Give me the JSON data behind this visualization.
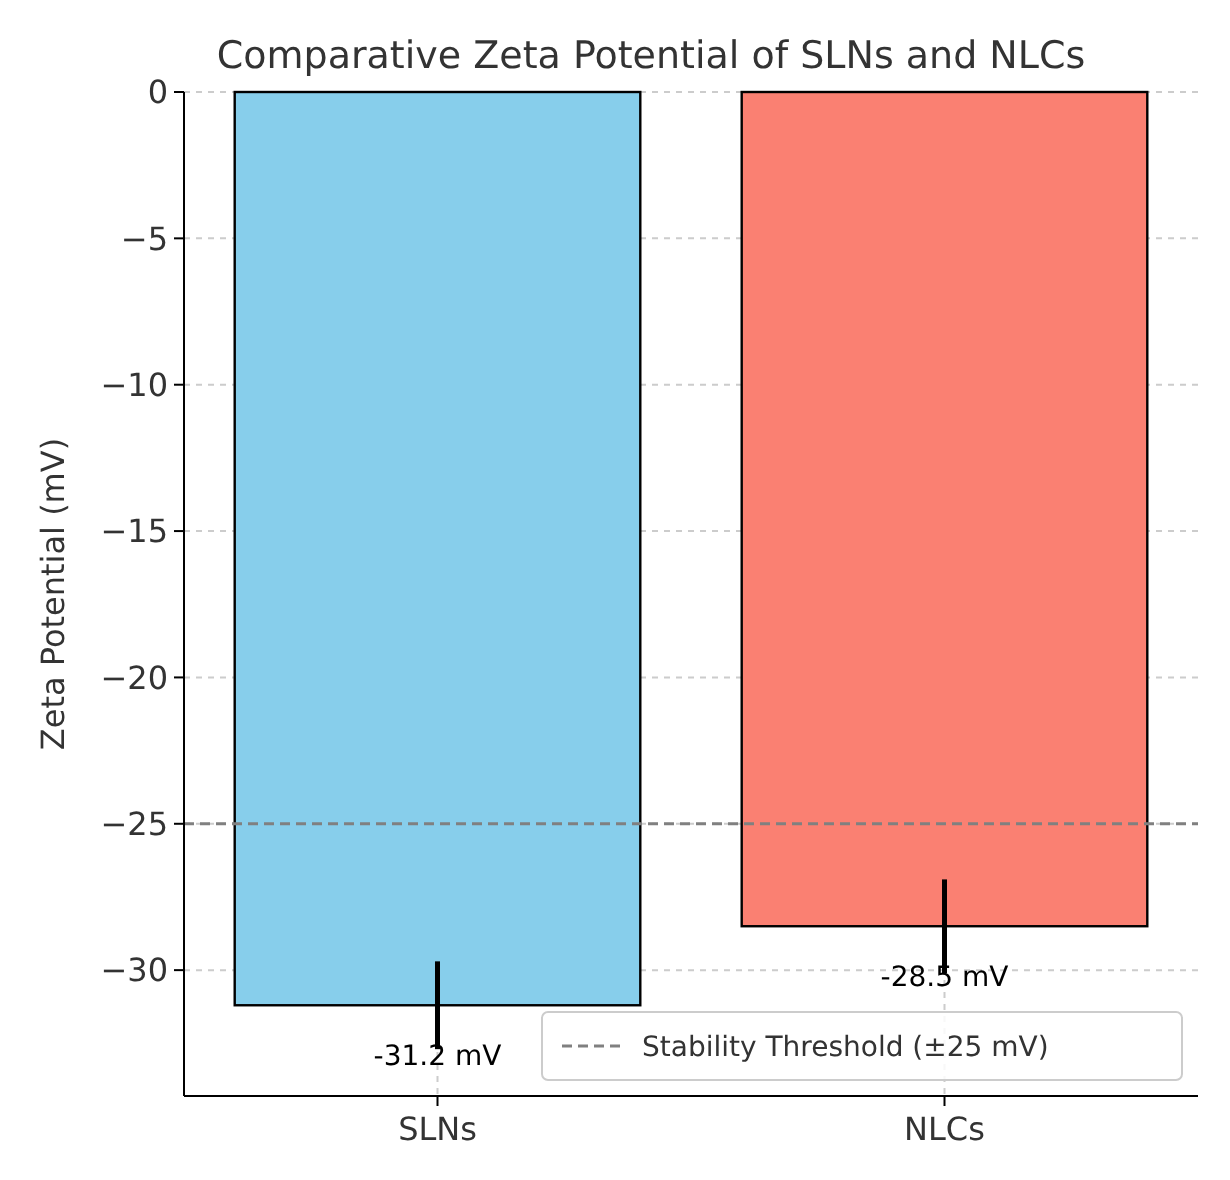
{
  "chart_data": {
    "type": "bar",
    "title": "Comparative Zeta Potential of SLNs and NLCs",
    "ylabel": "Zeta Potential (mV)",
    "categories": [
      "SLNs",
      "NLCs"
    ],
    "values": [
      -31.2,
      -28.5
    ],
    "colors": [
      "#87ceeb",
      "#fa8072"
    ],
    "errors": [
      1.5,
      1.6
    ],
    "value_labels": [
      "-31.2 mV",
      "-28.5 mV"
    ],
    "ylim": [
      -34.3,
      0
    ],
    "yticks": [
      {
        "value": -30,
        "label": "−30"
      },
      {
        "value": -25,
        "label": "−25"
      },
      {
        "value": -20,
        "label": "−20"
      },
      {
        "value": -15,
        "label": "−15"
      },
      {
        "value": -10,
        "label": "−10"
      },
      {
        "value": -5,
        "label": "−5"
      },
      0
    ],
    "ref_lines": [
      {
        "axis": "y",
        "value": -25,
        "label": "Stability Threshold (±25 mV)",
        "color": "#808080",
        "line_style": "dashed"
      }
    ],
    "grid": true,
    "legend": "bottom right"
  }
}
